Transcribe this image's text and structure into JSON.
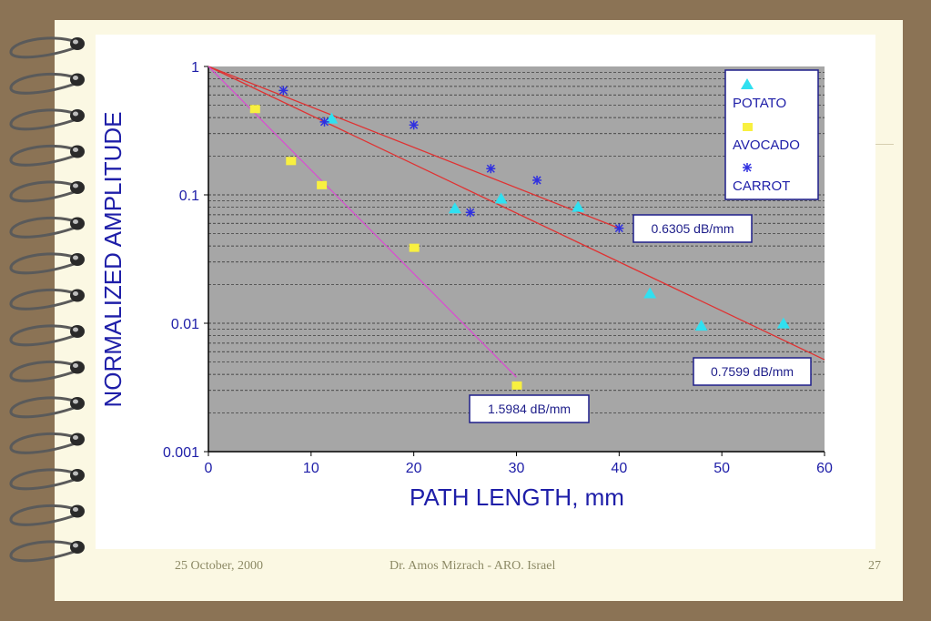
{
  "slide": {
    "date": "25 October, 2000",
    "author": "Dr.  Amos Mizrach - ARO. Israel",
    "page": "27"
  },
  "colors": {
    "frame": "#8b7355",
    "paper": "#fbf8e3",
    "plot_bg": "#a6a6a6",
    "axis_text": "#1e1ea8",
    "fit_line": "#e03232",
    "avocado_fit": "#d850d0",
    "potato": "#30e0f0",
    "avocado": "#f8f040",
    "carrot": "#3030e0"
  },
  "chart_data": {
    "type": "scatter",
    "title": "",
    "xlabel": "PATH  LENGTH,  mm",
    "ylabel": "NORMALIZED AMPLITUDE",
    "xlim": [
      0,
      60
    ],
    "ylim": [
      0.001,
      1
    ],
    "yscale": "log",
    "grid": true,
    "legend": "top-right",
    "x_ticks": [
      "0",
      "10",
      "20",
      "30",
      "40",
      "50",
      "60"
    ],
    "y_ticks": [
      "1",
      "0.1",
      "0.01",
      "0.001"
    ],
    "series": [
      {
        "name": "POTATO",
        "marker": "triangle",
        "points": [
          [
            12,
            0.39
          ],
          [
            24,
            0.078
          ],
          [
            28.5,
            0.093
          ],
          [
            36,
            0.08
          ],
          [
            43,
            0.017
          ],
          [
            48,
            0.0095
          ],
          [
            56,
            0.0099
          ]
        ]
      },
      {
        "name": "AVOCADO",
        "marker": "square",
        "points": [
          [
            4.5,
            0.47
          ],
          [
            8,
            0.185
          ],
          [
            11,
            0.12
          ],
          [
            20,
            0.039
          ],
          [
            30,
            0.0033
          ]
        ]
      },
      {
        "name": "CARROT",
        "marker": "asterisk",
        "points": [
          [
            7.3,
            0.65
          ],
          [
            11.3,
            0.37
          ],
          [
            20,
            0.35
          ],
          [
            25.5,
            0.073
          ],
          [
            27.5,
            0.16
          ],
          [
            32,
            0.13
          ],
          [
            40,
            0.055
          ]
        ]
      }
    ],
    "fit_lines": [
      {
        "label": "0.6305 dB/mm",
        "x": [
          0,
          40
        ],
        "y": [
          1,
          0.055
        ]
      },
      {
        "label": "0.7599 dB/mm",
        "x": [
          0,
          60
        ],
        "y": [
          1,
          0.0052
        ]
      },
      {
        "label": "1.5984 dB/mm",
        "x": [
          0,
          30
        ],
        "y": [
          1,
          0.0038
        ]
      }
    ]
  }
}
